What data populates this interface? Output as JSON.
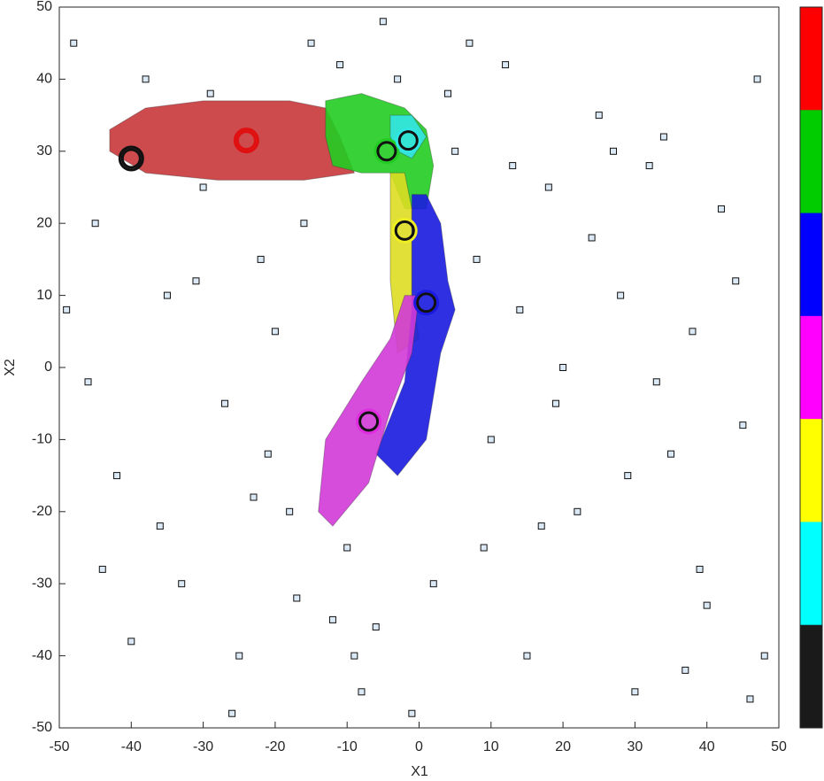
{
  "chart_data": {
    "type": "scatter",
    "xlabel": "X1",
    "ylabel": "X2",
    "xlim": [
      -50,
      50
    ],
    "ylim": [
      -50,
      50
    ],
    "xticks": [
      -50,
      -40,
      -30,
      -20,
      -10,
      0,
      10,
      20,
      30,
      40,
      50
    ],
    "yticks": [
      -50,
      -40,
      -30,
      -20,
      -10,
      0,
      10,
      20,
      30,
      40,
      50
    ],
    "point_color": "#dbe8f5",
    "scatter": {
      "x": [
        -48,
        -45,
        -42,
        -38,
        -35,
        -33,
        -30,
        -27,
        -25,
        -22,
        -20,
        -18,
        -15,
        -12,
        -10,
        -8,
        -5,
        -3,
        2,
        5,
        8,
        10,
        12,
        15,
        18,
        20,
        22,
        25,
        28,
        30,
        32,
        35,
        38,
        40,
        42,
        45,
        47,
        -46,
        -40,
        -36,
        -31,
        -26,
        -21,
        -16,
        -11,
        -6,
        -1,
        4,
        9,
        14,
        19,
        24,
        29,
        34,
        39,
        44,
        48,
        -44,
        -29,
        -17,
        7,
        17,
        27,
        37,
        -49,
        -23,
        13,
        33,
        46,
        -9
      ],
      "y": [
        45,
        20,
        -15,
        40,
        10,
        -30,
        25,
        -5,
        -40,
        15,
        5,
        -20,
        45,
        -35,
        -25,
        -45,
        48,
        40,
        -30,
        30,
        15,
        -10,
        42,
        -40,
        25,
        0,
        -20,
        35,
        10,
        -45,
        28,
        -12,
        5,
        -33,
        22,
        -8,
        40,
        -2,
        -38,
        -22,
        12,
        -48,
        -12,
        20,
        42,
        -36,
        -48,
        38,
        -25,
        8,
        -5,
        18,
        -15,
        32,
        -28,
        12,
        -40,
        -28,
        38,
        -32,
        45,
        -22,
        30,
        -42,
        8,
        -18,
        28,
        -2,
        -46,
        -40
      ]
    },
    "regions": [
      {
        "color": "#c8363a",
        "x": [
          -43,
          -38,
          -30,
          -18,
          -13,
          -11,
          -9,
          -16,
          -28,
          -38,
          -43
        ],
        "y": [
          33,
          36,
          37,
          37,
          36,
          32,
          27,
          26,
          26,
          27,
          30
        ]
      },
      {
        "color": "#22cc22",
        "x": [
          -13,
          -8,
          -2,
          1,
          2,
          1,
          -2,
          -4,
          -8,
          -12,
          -13
        ],
        "y": [
          37,
          38,
          36,
          33,
          28,
          22,
          22,
          27,
          27,
          28,
          32
        ]
      },
      {
        "color": "#dddd22",
        "x": [
          -4,
          -2,
          -1,
          -1,
          0,
          -3,
          -4,
          -4
        ],
        "y": [
          27,
          27,
          22,
          10,
          4,
          2,
          12,
          20
        ]
      },
      {
        "color": "#1a1ae0",
        "x": [
          -1,
          1,
          3,
          4,
          5,
          3,
          1,
          -3,
          -6,
          -2,
          -1,
          -1
        ],
        "y": [
          24,
          24,
          20,
          12,
          8,
          2,
          -10,
          -15,
          -12,
          -2,
          8,
          16
        ]
      },
      {
        "color": "#d23ad8",
        "x": [
          -2,
          0,
          -1,
          -4,
          -7,
          -12,
          -14,
          -13,
          -8,
          -4
        ],
        "y": [
          10,
          10,
          2,
          -6,
          -16,
          -22,
          -20,
          -10,
          -2,
          4
        ]
      },
      {
        "color": "#33e6e6",
        "x": [
          -4,
          -1,
          1,
          -1,
          -3,
          -4
        ],
        "y": [
          35,
          35,
          32,
          29,
          30,
          32
        ]
      }
    ],
    "centroids": [
      {
        "x": -24,
        "y": 31.5,
        "color": "#e01010"
      },
      {
        "x": -4.5,
        "y": 30,
        "color": "#22cc22"
      },
      {
        "x": -1.5,
        "y": 31.5,
        "color": "#33e6e6"
      },
      {
        "x": -2,
        "y": 19,
        "color": "#eeee22"
      },
      {
        "x": 1,
        "y": 9,
        "color": "#1a1ae0"
      },
      {
        "x": -7,
        "y": -7.5,
        "color": "#e02ce0"
      },
      {
        "x": -40,
        "y": 29,
        "color": "#111111"
      }
    ],
    "colorbar": [
      "#ff0000",
      "#00cc00",
      "#0000ff",
      "#ff00ff",
      "#ffff00",
      "#00ffff",
      "#1a1a1a"
    ]
  }
}
